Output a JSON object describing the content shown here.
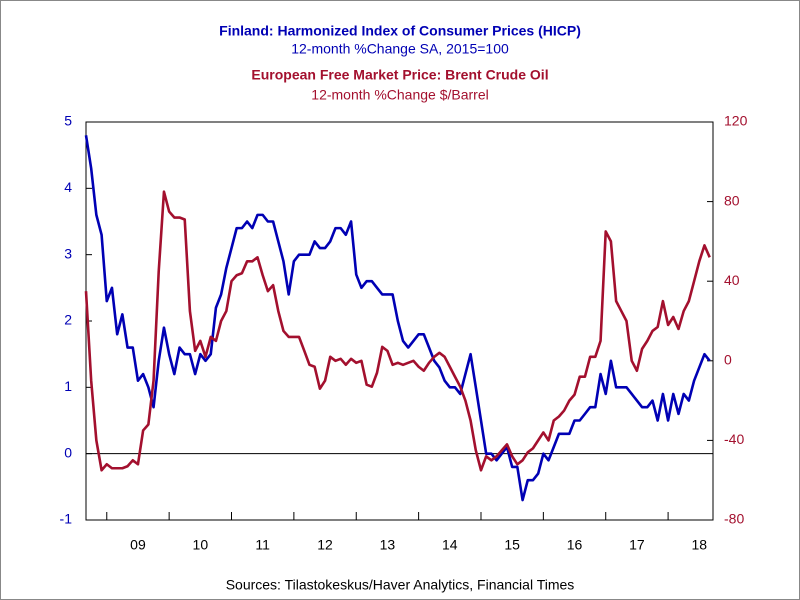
{
  "chart_data": {
    "type": "line",
    "source": "Sources:  Tilastokeskus/Haver Analytics, Financial Times",
    "x": [
      2008.667,
      2008.75,
      2008.833,
      2008.917,
      2009,
      2009.083,
      2009.167,
      2009.25,
      2009.333,
      2009.417,
      2009.5,
      2009.583,
      2009.667,
      2009.75,
      2009.833,
      2009.917,
      2010,
      2010.083,
      2010.167,
      2010.25,
      2010.333,
      2010.417,
      2010.5,
      2010.583,
      2010.667,
      2010.75,
      2010.833,
      2010.917,
      2011,
      2011.083,
      2011.167,
      2011.25,
      2011.333,
      2011.417,
      2011.5,
      2011.583,
      2011.667,
      2011.75,
      2011.833,
      2011.917,
      2012,
      2012.083,
      2012.167,
      2012.25,
      2012.333,
      2012.417,
      2012.5,
      2012.583,
      2012.667,
      2012.75,
      2012.833,
      2012.917,
      2013,
      2013.083,
      2013.167,
      2013.25,
      2013.333,
      2013.417,
      2013.5,
      2013.583,
      2013.667,
      2013.75,
      2013.833,
      2013.917,
      2014,
      2014.083,
      2014.167,
      2014.25,
      2014.333,
      2014.417,
      2014.5,
      2014.583,
      2014.667,
      2014.75,
      2014.833,
      2014.917,
      2015,
      2015.083,
      2015.167,
      2015.25,
      2015.333,
      2015.417,
      2015.5,
      2015.583,
      2015.667,
      2015.75,
      2015.833,
      2015.917,
      2016,
      2016.083,
      2016.167,
      2016.25,
      2016.333,
      2016.417,
      2016.5,
      2016.583,
      2016.667,
      2016.75,
      2016.833,
      2016.917,
      2017,
      2017.083,
      2017.167,
      2017.25,
      2017.333,
      2017.417,
      2017.5,
      2017.583,
      2017.667,
      2017.75,
      2017.833,
      2017.917,
      2018,
      2018.083,
      2018.167,
      2018.25,
      2018.333,
      2018.417,
      2018.5,
      2018.583,
      2018.667
    ],
    "series": [
      {
        "name": "Finland: Harmonized Index of Consumer Prices (HICP)",
        "subtitle": "12-month %Change      SA, 2015=100",
        "color": "#0000b4",
        "axis": "y",
        "values": [
          4.8,
          4.3,
          3.6,
          3.3,
          2.3,
          2.5,
          1.8,
          2.1,
          1.6,
          1.6,
          1.1,
          1.2,
          1.0,
          0.7,
          1.4,
          1.9,
          1.5,
          1.2,
          1.6,
          1.5,
          1.5,
          1.2,
          1.5,
          1.4,
          1.5,
          2.2,
          2.4,
          2.8,
          3.1,
          3.4,
          3.4,
          3.5,
          3.4,
          3.6,
          3.6,
          3.5,
          3.5,
          3.2,
          2.9,
          2.4,
          2.9,
          3.0,
          3.0,
          3.0,
          3.2,
          3.1,
          3.1,
          3.2,
          3.4,
          3.4,
          3.3,
          3.5,
          2.7,
          2.5,
          2.6,
          2.6,
          2.5,
          2.4,
          2.4,
          2.4,
          2.0,
          1.7,
          1.6,
          1.7,
          1.8,
          1.8,
          1.6,
          1.4,
          1.3,
          1.1,
          1.0,
          1.0,
          0.9,
          1.2,
          1.5,
          1.0,
          0.5,
          0.0,
          0.0,
          -0.1,
          0.0,
          0.1,
          -0.2,
          -0.2,
          -0.7,
          -0.4,
          -0.4,
          -0.3,
          0.0,
          -0.1,
          0.1,
          0.3,
          0.3,
          0.3,
          0.5,
          0.5,
          0.6,
          0.7,
          0.7,
          1.2,
          0.9,
          1.4,
          1.0,
          1.0,
          1.0,
          0.9,
          0.8,
          0.7,
          0.7,
          0.8,
          0.5,
          0.9,
          0.5,
          0.9,
          0.6,
          0.9,
          0.8,
          1.1,
          1.3,
          1.5,
          1.4
        ]
      },
      {
        "name": "European Free Market Price: Brent Crude Oil",
        "subtitle": "12-month %Change      $/Barrel",
        "color": "#a3102e",
        "axis": "y2",
        "values": [
          35,
          -10,
          -40,
          -55,
          -52,
          -54,
          -54,
          -54,
          -53,
          -50,
          -52,
          -35,
          -32,
          -10,
          45,
          85,
          75,
          72,
          72,
          71,
          25,
          5,
          10,
          2,
          12,
          10,
          20,
          25,
          40,
          43,
          44,
          50,
          50,
          52,
          43,
          35,
          38,
          25,
          15,
          12,
          12,
          12,
          5,
          -2,
          -3,
          -14,
          -10,
          2,
          0,
          1,
          -2,
          1,
          -1,
          0,
          -12,
          -13,
          -6,
          7,
          5,
          -2,
          -1,
          -2,
          -1,
          0,
          -3,
          -5,
          -1,
          2,
          4,
          2,
          -3,
          -8,
          -13,
          -20,
          -30,
          -45,
          -55,
          -48,
          -50,
          -48,
          -45,
          -42,
          -48,
          -52,
          -50,
          -46,
          -44,
          -40,
          -36,
          -40,
          -30,
          -28,
          -25,
          -20,
          -17,
          -8,
          -8,
          2,
          2,
          10,
          65,
          60,
          30,
          25,
          20,
          0,
          -5,
          6,
          10,
          15,
          17,
          30,
          18,
          22,
          16,
          25,
          30,
          40,
          50,
          58,
          52
        ]
      }
    ],
    "xlim": [
      2008.667,
      2018.72
    ],
    "xticks": [
      {
        "value": 2009.5,
        "label": "09"
      },
      {
        "value": 2010.5,
        "label": "10"
      },
      {
        "value": 2011.5,
        "label": "11"
      },
      {
        "value": 2012.5,
        "label": "12"
      },
      {
        "value": 2013.5,
        "label": "13"
      },
      {
        "value": 2014.5,
        "label": "14"
      },
      {
        "value": 2015.5,
        "label": "15"
      },
      {
        "value": 2016.5,
        "label": "16"
      },
      {
        "value": 2017.5,
        "label": "17"
      },
      {
        "value": 2018.5,
        "label": "18"
      }
    ],
    "ylim": [
      -1,
      5
    ],
    "yticks": [
      -1,
      0,
      1,
      2,
      3,
      4,
      5
    ],
    "y2lim": [
      -80,
      120
    ],
    "y2ticks": [
      -80,
      -40,
      0,
      40,
      80,
      120
    ],
    "zero_line": true
  }
}
